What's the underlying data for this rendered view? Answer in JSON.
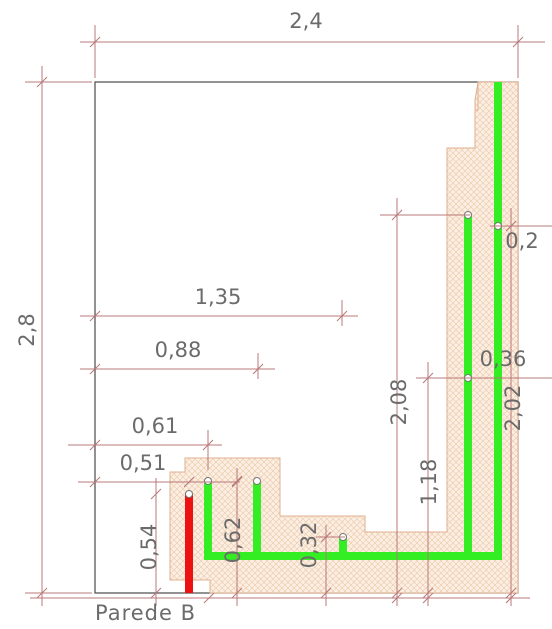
{
  "drawing": {
    "wall_label": "Parede B",
    "dimensions": {
      "width": "2,4",
      "height": "2,8",
      "d_135": "1,35",
      "d_088": "0,88",
      "d_061": "0,61",
      "d_051": "0,51",
      "d_054": "0,54",
      "d_062": "0,62",
      "d_032": "0,32",
      "d_208": "2,08",
      "d_118": "1,18",
      "d_202": "2,02",
      "d_02": "0,2",
      "d_036": "0,36"
    },
    "colors": {
      "hot_pipe": "#ee1111",
      "cold_pipe": "#33ee22",
      "channel_fill": "#f3dcc6",
      "dimension": "#b87878",
      "text": "#6b6b6b"
    }
  }
}
